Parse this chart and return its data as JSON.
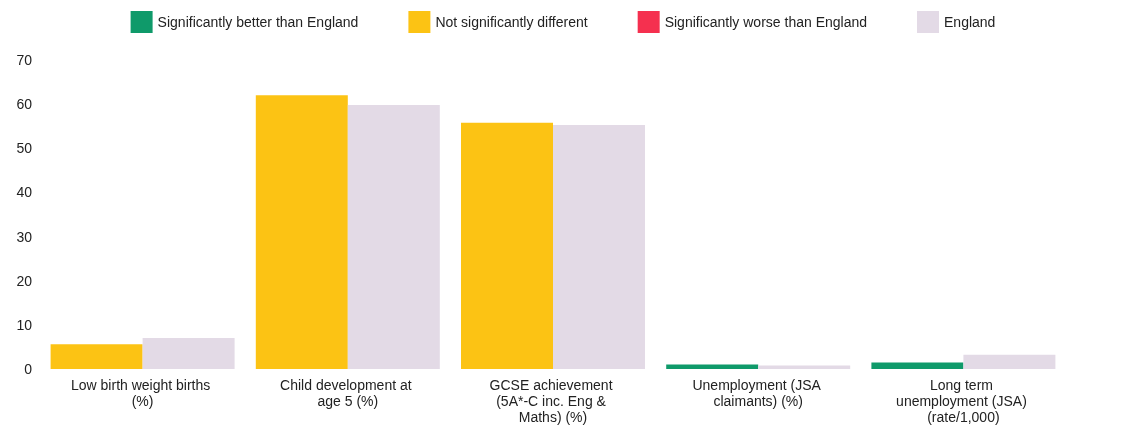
{
  "chart_data": {
    "type": "bar",
    "categories": [
      "Low birth weight births (%)",
      "Child development at age 5 (%)",
      "GCSE achievement (5A*-C inc. Eng & Maths) (%)",
      "Unemployment (JSA claimants) (%)",
      "Long term unemployment (JSA) (rate/1,000)"
    ],
    "series": [
      {
        "name": "Significantly better than England",
        "color": "#0f9a6a",
        "values": [
          null,
          null,
          null,
          1.0,
          1.5
        ]
      },
      {
        "name": "Not significantly different",
        "color": "#fcc314",
        "values": [
          5.6,
          62.0,
          55.8,
          null,
          null
        ]
      },
      {
        "name": "Significantly worse than England",
        "color": "#f5304f",
        "values": [
          null,
          null,
          null,
          null,
          null
        ]
      },
      {
        "name": "England",
        "color": "#e3dae6",
        "values": [
          7.0,
          59.8,
          55.3,
          0.8,
          3.2
        ]
      }
    ],
    "ylim": [
      0,
      70
    ],
    "yticks": [
      0,
      10,
      20,
      30,
      40,
      50,
      60,
      70
    ],
    "grid": false,
    "legend": "top"
  }
}
